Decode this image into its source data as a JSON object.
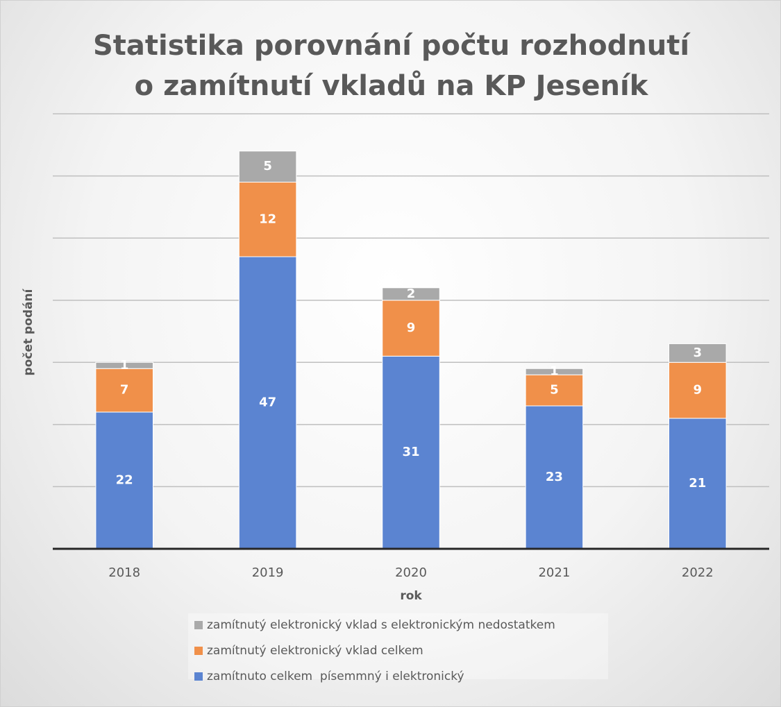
{
  "chart_data": {
    "type": "stacked_bar",
    "title": "Statistika porovnání počtu rozhodnutí o zamítnutí vkladů na KP Jeseník",
    "x_label": "rok",
    "y_label": "počet podání",
    "categories": [
      "2018",
      "2019",
      "2020",
      "2021",
      "2022"
    ],
    "series": [
      {
        "name": "zamítnuto celkem  písemmný i elektronický",
        "color": "#5b84d1",
        "values": [
          22,
          47,
          31,
          23,
          21
        ]
      },
      {
        "name": "zamítnutý elektronický vklad celkem",
        "color": "#f0904a",
        "values": [
          7,
          12,
          9,
          5,
          9
        ]
      },
      {
        "name": "zamítnutý elektronický vklad s elektronickým nedostatkem",
        "color": "#a9a9a9",
        "values": [
          1,
          5,
          2,
          1,
          3
        ]
      }
    ],
    "ylim": [
      0,
      70
    ],
    "yticks": [
      0,
      10,
      20,
      30,
      40,
      50,
      60,
      70
    ],
    "grid": true
  }
}
